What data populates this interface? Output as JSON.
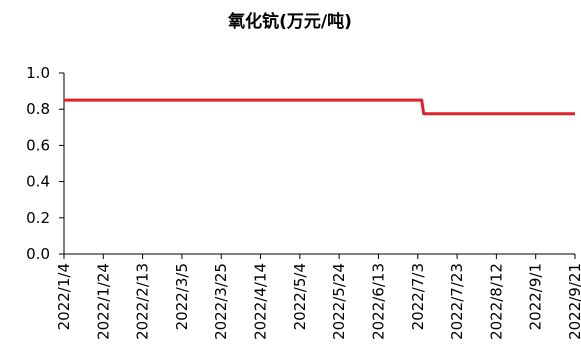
{
  "chart_data": {
    "type": "line",
    "title": "氧化钪(万元/吨)",
    "xlabel": "",
    "ylabel": "",
    "ylim": [
      0,
      1.0
    ],
    "yticks": [
      0.0,
      0.2,
      0.4,
      0.6,
      0.8,
      1.0
    ],
    "ytick_labels": [
      "0.0",
      "0.2",
      "0.4",
      "0.6",
      "0.8",
      "1.0"
    ],
    "xrange": [
      "2022-01-04",
      "2022-09-21"
    ],
    "xtick_labels": [
      "2022/1/4",
      "2022/1/24",
      "2022/2/13",
      "2022/3/5",
      "2022/3/25",
      "2022/4/14",
      "2022/5/4",
      "2022/5/24",
      "2022/6/13",
      "2022/7/3",
      "2022/7/23",
      "2022/8/12",
      "2022/9/1",
      "2022/9/21"
    ],
    "grid": false,
    "legend": "none",
    "series": [
      {
        "color": "#e0202a",
        "x": [
          "2022-01-04",
          "2022-07-05",
          "2022-07-06",
          "2022-09-21"
        ],
        "y": [
          0.85,
          0.85,
          0.775,
          0.775
        ]
      }
    ]
  }
}
